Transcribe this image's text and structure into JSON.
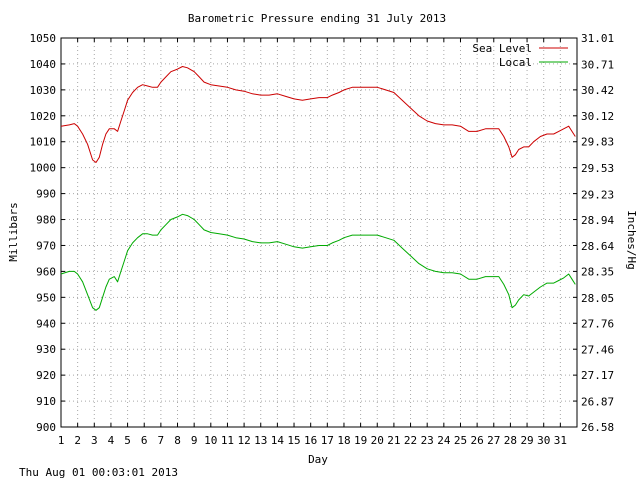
{
  "chart_data": {
    "type": "line",
    "title": "Barometric Pressure ending 31 July 2013",
    "xlabel": "Day",
    "ylabel": "Millibars",
    "y2label": "Inches/Hg",
    "footer": "Thu Aug 01 00:03:01 2013",
    "xlim": [
      1,
      32
    ],
    "ylim": [
      900,
      1050
    ],
    "x_ticks": [
      1,
      2,
      3,
      4,
      5,
      6,
      7,
      8,
      9,
      10,
      11,
      12,
      13,
      14,
      15,
      16,
      17,
      18,
      19,
      20,
      21,
      22,
      23,
      24,
      25,
      26,
      27,
      28,
      29,
      30,
      31
    ],
    "x_tick_labels": [
      "1",
      "2",
      "3",
      "4",
      "5",
      "6",
      "7",
      "8",
      "9",
      "10",
      "11",
      "12",
      "13",
      "14",
      "15",
      "16",
      "17",
      "18",
      "19",
      "20",
      "21",
      "22",
      "23",
      "24",
      "25",
      "26",
      "27",
      "28",
      "29",
      "30",
      "31"
    ],
    "y_ticks": [
      900,
      910,
      920,
      930,
      940,
      950,
      960,
      970,
      980,
      990,
      1000,
      1010,
      1020,
      1030,
      1040,
      1050
    ],
    "y_tick_labels": [
      "900",
      "910",
      "920",
      "930",
      "940",
      "950",
      "960",
      "970",
      "980",
      "990",
      "1000",
      "1010",
      "1020",
      "1030",
      "1040",
      "1050"
    ],
    "y2_ticks": [
      26.58,
      26.87,
      27.17,
      27.46,
      27.76,
      28.05,
      28.35,
      28.64,
      28.94,
      29.23,
      29.53,
      29.83,
      30.12,
      30.42,
      30.71,
      31.01
    ],
    "y2_tick_labels": [
      "26.58",
      "26.87",
      "27.17",
      "27.46",
      "27.76",
      "28.05",
      "28.35",
      "28.64",
      "28.94",
      "29.23",
      "29.53",
      "29.83",
      "30.12",
      "30.42",
      "30.71",
      "31.01"
    ],
    "grid": true,
    "legend_position": "top-right",
    "series": [
      {
        "name": "Sea Level",
        "color": "#cc0000",
        "points": [
          [
            1.0,
            1016
          ],
          [
            1.5,
            1016.5
          ],
          [
            1.8,
            1017
          ],
          [
            2.0,
            1016
          ],
          [
            2.3,
            1013
          ],
          [
            2.6,
            1009
          ],
          [
            2.9,
            1003
          ],
          [
            3.1,
            1002
          ],
          [
            3.3,
            1004
          ],
          [
            3.5,
            1009
          ],
          [
            3.7,
            1013
          ],
          [
            3.9,
            1015
          ],
          [
            4.2,
            1015
          ],
          [
            4.4,
            1014
          ],
          [
            4.6,
            1018
          ],
          [
            4.8,
            1022
          ],
          [
            5.0,
            1026
          ],
          [
            5.3,
            1029
          ],
          [
            5.6,
            1031
          ],
          [
            5.9,
            1032
          ],
          [
            6.2,
            1031.5
          ],
          [
            6.5,
            1031
          ],
          [
            6.8,
            1031
          ],
          [
            7.0,
            1033
          ],
          [
            7.3,
            1035
          ],
          [
            7.6,
            1037
          ],
          [
            8.0,
            1038
          ],
          [
            8.3,
            1039
          ],
          [
            8.6,
            1038.5
          ],
          [
            9.0,
            1037
          ],
          [
            9.3,
            1035
          ],
          [
            9.6,
            1033
          ],
          [
            10.0,
            1032
          ],
          [
            10.5,
            1031.5
          ],
          [
            11.0,
            1031
          ],
          [
            11.5,
            1030
          ],
          [
            12.0,
            1029.5
          ],
          [
            12.5,
            1028.5
          ],
          [
            13.0,
            1028
          ],
          [
            13.5,
            1028
          ],
          [
            14.0,
            1028.5
          ],
          [
            14.5,
            1027.5
          ],
          [
            15.0,
            1026.5
          ],
          [
            15.5,
            1026
          ],
          [
            16.0,
            1026.5
          ],
          [
            16.5,
            1027
          ],
          [
            17.0,
            1027
          ],
          [
            17.3,
            1028
          ],
          [
            17.7,
            1029
          ],
          [
            18.0,
            1030
          ],
          [
            18.5,
            1031
          ],
          [
            19.0,
            1031
          ],
          [
            19.5,
            1031
          ],
          [
            20.0,
            1031
          ],
          [
            20.5,
            1030
          ],
          [
            21.0,
            1029
          ],
          [
            21.5,
            1026
          ],
          [
            22.0,
            1023
          ],
          [
            22.5,
            1020
          ],
          [
            23.0,
            1018
          ],
          [
            23.5,
            1017
          ],
          [
            24.0,
            1016.5
          ],
          [
            24.5,
            1016.5
          ],
          [
            25.0,
            1016
          ],
          [
            25.5,
            1014
          ],
          [
            26.0,
            1014
          ],
          [
            26.5,
            1015
          ],
          [
            27.0,
            1015
          ],
          [
            27.3,
            1015
          ],
          [
            27.6,
            1012
          ],
          [
            27.9,
            1008
          ],
          [
            28.1,
            1004
          ],
          [
            28.3,
            1005
          ],
          [
            28.5,
            1007
          ],
          [
            28.8,
            1008
          ],
          [
            29.1,
            1008
          ],
          [
            29.4,
            1010
          ],
          [
            29.8,
            1012
          ],
          [
            30.2,
            1013
          ],
          [
            30.6,
            1013
          ],
          [
            30.9,
            1014
          ],
          [
            31.2,
            1015
          ],
          [
            31.5,
            1016
          ],
          [
            31.7,
            1014
          ],
          [
            31.9,
            1012
          ]
        ]
      },
      {
        "name": "Local",
        "color": "#00aa00",
        "points": [
          [
            1.0,
            959
          ],
          [
            1.5,
            960
          ],
          [
            1.8,
            960
          ],
          [
            2.0,
            959
          ],
          [
            2.3,
            956
          ],
          [
            2.6,
            951
          ],
          [
            2.9,
            946
          ],
          [
            3.1,
            945
          ],
          [
            3.3,
            946
          ],
          [
            3.5,
            950
          ],
          [
            3.7,
            954
          ],
          [
            3.9,
            957
          ],
          [
            4.2,
            958
          ],
          [
            4.4,
            956
          ],
          [
            4.6,
            960
          ],
          [
            4.8,
            964
          ],
          [
            5.0,
            968
          ],
          [
            5.3,
            971
          ],
          [
            5.6,
            973
          ],
          [
            5.9,
            974.5
          ],
          [
            6.2,
            974.5
          ],
          [
            6.5,
            974
          ],
          [
            6.8,
            974
          ],
          [
            7.0,
            976
          ],
          [
            7.3,
            978
          ],
          [
            7.6,
            980
          ],
          [
            8.0,
            981
          ],
          [
            8.3,
            982
          ],
          [
            8.6,
            981.5
          ],
          [
            9.0,
            980
          ],
          [
            9.3,
            978
          ],
          [
            9.6,
            976
          ],
          [
            10.0,
            975
          ],
          [
            10.5,
            974.5
          ],
          [
            11.0,
            974
          ],
          [
            11.5,
            973
          ],
          [
            12.0,
            972.5
          ],
          [
            12.5,
            971.5
          ],
          [
            13.0,
            971
          ],
          [
            13.5,
            971
          ],
          [
            14.0,
            971.5
          ],
          [
            14.5,
            970.5
          ],
          [
            15.0,
            969.5
          ],
          [
            15.5,
            969
          ],
          [
            16.0,
            969.5
          ],
          [
            16.5,
            970
          ],
          [
            17.0,
            970
          ],
          [
            17.3,
            971
          ],
          [
            17.7,
            972
          ],
          [
            18.0,
            973
          ],
          [
            18.5,
            974
          ],
          [
            19.0,
            974
          ],
          [
            19.5,
            974
          ],
          [
            20.0,
            974
          ],
          [
            20.5,
            973
          ],
          [
            21.0,
            972
          ],
          [
            21.5,
            969
          ],
          [
            22.0,
            966
          ],
          [
            22.5,
            963
          ],
          [
            23.0,
            961
          ],
          [
            23.5,
            960
          ],
          [
            24.0,
            959.5
          ],
          [
            24.5,
            959.5
          ],
          [
            25.0,
            959
          ],
          [
            25.5,
            957
          ],
          [
            26.0,
            957
          ],
          [
            26.5,
            958
          ],
          [
            27.0,
            958
          ],
          [
            27.3,
            958
          ],
          [
            27.6,
            955
          ],
          [
            27.9,
            951
          ],
          [
            28.1,
            946
          ],
          [
            28.3,
            947
          ],
          [
            28.5,
            949
          ],
          [
            28.8,
            951
          ],
          [
            29.1,
            950.5
          ],
          [
            29.4,
            952
          ],
          [
            29.8,
            954
          ],
          [
            30.2,
            955.5
          ],
          [
            30.6,
            955.5
          ],
          [
            30.9,
            956.5
          ],
          [
            31.2,
            957.5
          ],
          [
            31.5,
            959
          ],
          [
            31.7,
            957
          ],
          [
            31.9,
            955
          ]
        ]
      }
    ]
  }
}
